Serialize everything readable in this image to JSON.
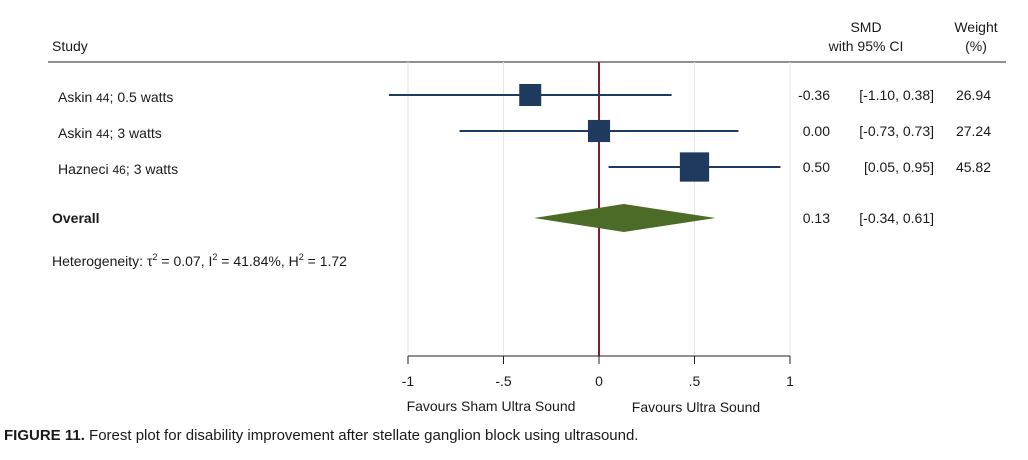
{
  "header": {
    "study_label": "Study",
    "smd_label_line1": "SMD",
    "smd_label_line2": "with 95% CI",
    "weight_label_line1": "Weight",
    "weight_label_line2": "(%)"
  },
  "heterogeneity": {
    "prefix": "Heterogeneity: ",
    "tau_symbol": "τ",
    "tau_value": " = 0.07, ",
    "i_symbol": "I",
    "i_value": " = 41.84%, ",
    "h_symbol": "H",
    "h_value": " = 1.72",
    "superscript": "2"
  },
  "x_axis": {
    "ticks": [
      {
        "value": -1,
        "label": "-1"
      },
      {
        "value": -0.5,
        "label": "-.5"
      },
      {
        "value": 0,
        "label": "0"
      },
      {
        "value": 0.5,
        "label": ".5"
      },
      {
        "value": 1,
        "label": "1"
      }
    ],
    "left_favours": "Favours Sham Ultra Sound",
    "right_favours": "Favours Ultra Sound"
  },
  "caption": {
    "label": "FIGURE 11.",
    "text": " Forest plot for disability improvement after stellate ganglion block using ultrasound."
  },
  "colors": {
    "study_marker": "#1f3a5f",
    "ci_line": "#1f3a5f",
    "overall_diamond": "#4b6b26",
    "null_line": "#8b1a2b",
    "grid": "#e6e6e6",
    "axis": "#222222"
  },
  "chart_data": {
    "type": "forest",
    "xlim": [
      -1,
      1
    ],
    "null_value": 0,
    "studies": [
      {
        "name": "Askin",
        "ref": "44",
        "sep": ";",
        "detail": "0.5 watts",
        "smd": -0.36,
        "ci_low": -1.1,
        "ci_high": 0.38,
        "smd_label": "-0.36",
        "ci_label": "[-1.10,  0.38]",
        "weight": 26.94,
        "weight_label": "26.94"
      },
      {
        "name": "Askin",
        "ref": "44",
        "sep": ";",
        "detail": "3 watts",
        "smd": 0.0,
        "ci_low": -0.73,
        "ci_high": 0.73,
        "smd_label": "0.00",
        "ci_label": "[-0.73,  0.73]",
        "weight": 27.24,
        "weight_label": "27.24"
      },
      {
        "name": "Hazneci",
        "ref": "46",
        "sep": ";",
        "detail": "3 watts",
        "smd": 0.5,
        "ci_low": 0.05,
        "ci_high": 0.95,
        "smd_label": "0.50",
        "ci_label": "[0.05,  0.95]",
        "weight": 45.82,
        "weight_label": "45.82"
      }
    ],
    "overall": {
      "name": "Overall",
      "smd": 0.13,
      "ci_low": -0.34,
      "ci_high": 0.61,
      "smd_label": "0.13",
      "ci_label": "[-0.34,  0.61]"
    }
  }
}
